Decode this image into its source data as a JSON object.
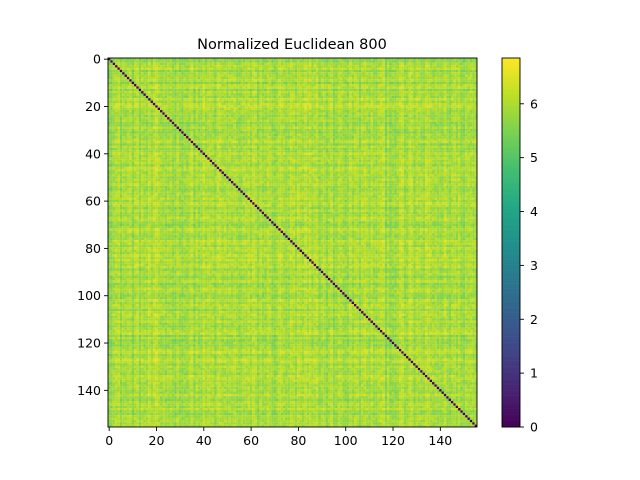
{
  "chart_data": {
    "type": "heatmap",
    "title": "Normalized Euclidean 800",
    "xlabel": "",
    "ylabel": "",
    "matrix_size": 156,
    "diagonal_value": 0,
    "off_diagonal_value_range": [
      4.9,
      6.85
    ],
    "off_diagonal_typical_value": 5.9,
    "xlim": [
      -0.5,
      155.5
    ],
    "ylim": [
      155.5,
      -0.5
    ],
    "x_ticks": [
      0,
      20,
      40,
      60,
      80,
      100,
      120,
      140
    ],
    "x_tick_labels": [
      "0",
      "20",
      "40",
      "60",
      "80",
      "100",
      "120",
      "140"
    ],
    "y_ticks": [
      0,
      20,
      40,
      60,
      80,
      100,
      120,
      140
    ],
    "y_tick_labels": [
      "0",
      "20",
      "40",
      "60",
      "80",
      "100",
      "120",
      "140"
    ],
    "colorbar": {
      "colormap": "viridis",
      "vmin": 0,
      "vmax": 6.85,
      "ticks": [
        0,
        1,
        2,
        3,
        4,
        5,
        6
      ],
      "tick_labels": [
        "0",
        "1",
        "2",
        "3",
        "4",
        "5",
        "6"
      ]
    },
    "grid": false,
    "legend": "none"
  }
}
